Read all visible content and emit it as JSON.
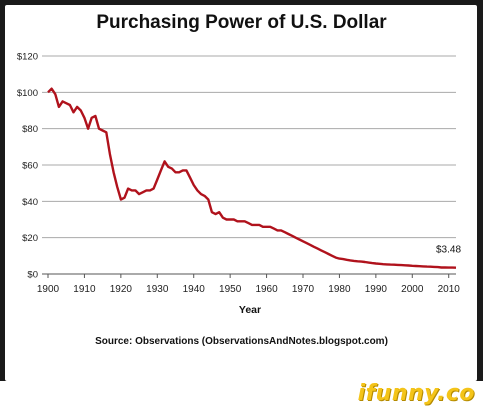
{
  "chart_data": {
    "type": "line",
    "title": "Purchasing Power of U.S. Dollar",
    "xlabel": "Year",
    "ylabel": "",
    "xlim": [
      1900,
      2012
    ],
    "ylim": [
      0,
      120
    ],
    "xticks": [
      1900,
      1910,
      1920,
      1930,
      1940,
      1950,
      1960,
      1970,
      1980,
      1990,
      2000,
      2010
    ],
    "yticks": [
      0,
      20,
      40,
      60,
      80,
      100,
      120
    ],
    "ytick_labels": [
      "$0",
      "$20",
      "$40",
      "$60",
      "$80",
      "$100",
      "$120"
    ],
    "grid": "horizontal",
    "series": [
      {
        "color": "#b0121c",
        "points": [
          [
            1900,
            100
          ],
          [
            1901,
            102
          ],
          [
            1902,
            99
          ],
          [
            1903,
            92
          ],
          [
            1904,
            95
          ],
          [
            1905,
            94
          ],
          [
            1906,
            93
          ],
          [
            1907,
            89
          ],
          [
            1908,
            92
          ],
          [
            1909,
            90
          ],
          [
            1910,
            86
          ],
          [
            1911,
            80
          ],
          [
            1912,
            86
          ],
          [
            1913,
            87
          ],
          [
            1914,
            80
          ],
          [
            1915,
            79
          ],
          [
            1916,
            78
          ],
          [
            1917,
            66
          ],
          [
            1918,
            56
          ],
          [
            1919,
            48
          ],
          [
            1920,
            41
          ],
          [
            1921,
            42
          ],
          [
            1922,
            47
          ],
          [
            1923,
            46
          ],
          [
            1924,
            46
          ],
          [
            1925,
            44
          ],
          [
            1926,
            45
          ],
          [
            1927,
            46
          ],
          [
            1928,
            46
          ],
          [
            1929,
            47
          ],
          [
            1930,
            52
          ],
          [
            1931,
            57
          ],
          [
            1932,
            62
          ],
          [
            1933,
            59
          ],
          [
            1934,
            58
          ],
          [
            1935,
            56
          ],
          [
            1936,
            56
          ],
          [
            1937,
            57
          ],
          [
            1938,
            57
          ],
          [
            1939,
            53
          ],
          [
            1940,
            49
          ],
          [
            1941,
            46
          ],
          [
            1942,
            44
          ],
          [
            1943,
            43
          ],
          [
            1944,
            41
          ],
          [
            1945,
            34
          ],
          [
            1946,
            33
          ],
          [
            1947,
            34
          ],
          [
            1948,
            31
          ],
          [
            1949,
            30
          ],
          [
            1950,
            30
          ],
          [
            1951,
            30
          ],
          [
            1952,
            29
          ],
          [
            1953,
            29
          ],
          [
            1954,
            29
          ],
          [
            1955,
            28
          ],
          [
            1956,
            27
          ],
          [
            1957,
            27
          ],
          [
            1958,
            27
          ],
          [
            1959,
            26
          ],
          [
            1960,
            26
          ],
          [
            1961,
            26
          ],
          [
            1962,
            25
          ],
          [
            1963,
            24
          ],
          [
            1964,
            24
          ],
          [
            1965,
            23
          ],
          [
            1966,
            22
          ],
          [
            1967,
            21
          ],
          [
            1968,
            20
          ],
          [
            1969,
            19
          ],
          [
            1970,
            18
          ],
          [
            1971,
            17
          ],
          [
            1972,
            16
          ],
          [
            1973,
            15
          ],
          [
            1974,
            14
          ],
          [
            1975,
            13
          ],
          [
            1976,
            12
          ],
          [
            1977,
            11
          ],
          [
            1978,
            10
          ],
          [
            1979,
            9
          ],
          [
            1980,
            8.5
          ],
          [
            1981,
            8.2
          ],
          [
            1982,
            7.8
          ],
          [
            1983,
            7.5
          ],
          [
            1984,
            7.2
          ],
          [
            1985,
            7
          ],
          [
            1986,
            6.8
          ],
          [
            1987,
            6.6
          ],
          [
            1988,
            6.3
          ],
          [
            1989,
            6
          ],
          [
            1990,
            5.8
          ],
          [
            1991,
            5.6
          ],
          [
            1992,
            5.4
          ],
          [
            1993,
            5.3
          ],
          [
            1994,
            5.2
          ],
          [
            1995,
            5.1
          ],
          [
            1996,
            5
          ],
          [
            1997,
            4.9
          ],
          [
            1998,
            4.8
          ],
          [
            1999,
            4.7
          ],
          [
            2000,
            4.5
          ],
          [
            2001,
            4.4
          ],
          [
            2002,
            4.3
          ],
          [
            2003,
            4.2
          ],
          [
            2004,
            4.1
          ],
          [
            2005,
            4
          ],
          [
            2006,
            3.9
          ],
          [
            2007,
            3.8
          ],
          [
            2008,
            3.6
          ],
          [
            2009,
            3.6
          ],
          [
            2010,
            3.55
          ],
          [
            2011,
            3.5
          ],
          [
            2012,
            3.48
          ]
        ]
      }
    ],
    "annotations": [
      {
        "text": "$3.48",
        "x": 2012,
        "y": 3.48
      }
    ]
  },
  "source_text": "Source: Observations (ObservationsAndNotes.blogspot.com)",
  "watermark": "ifunny.co"
}
